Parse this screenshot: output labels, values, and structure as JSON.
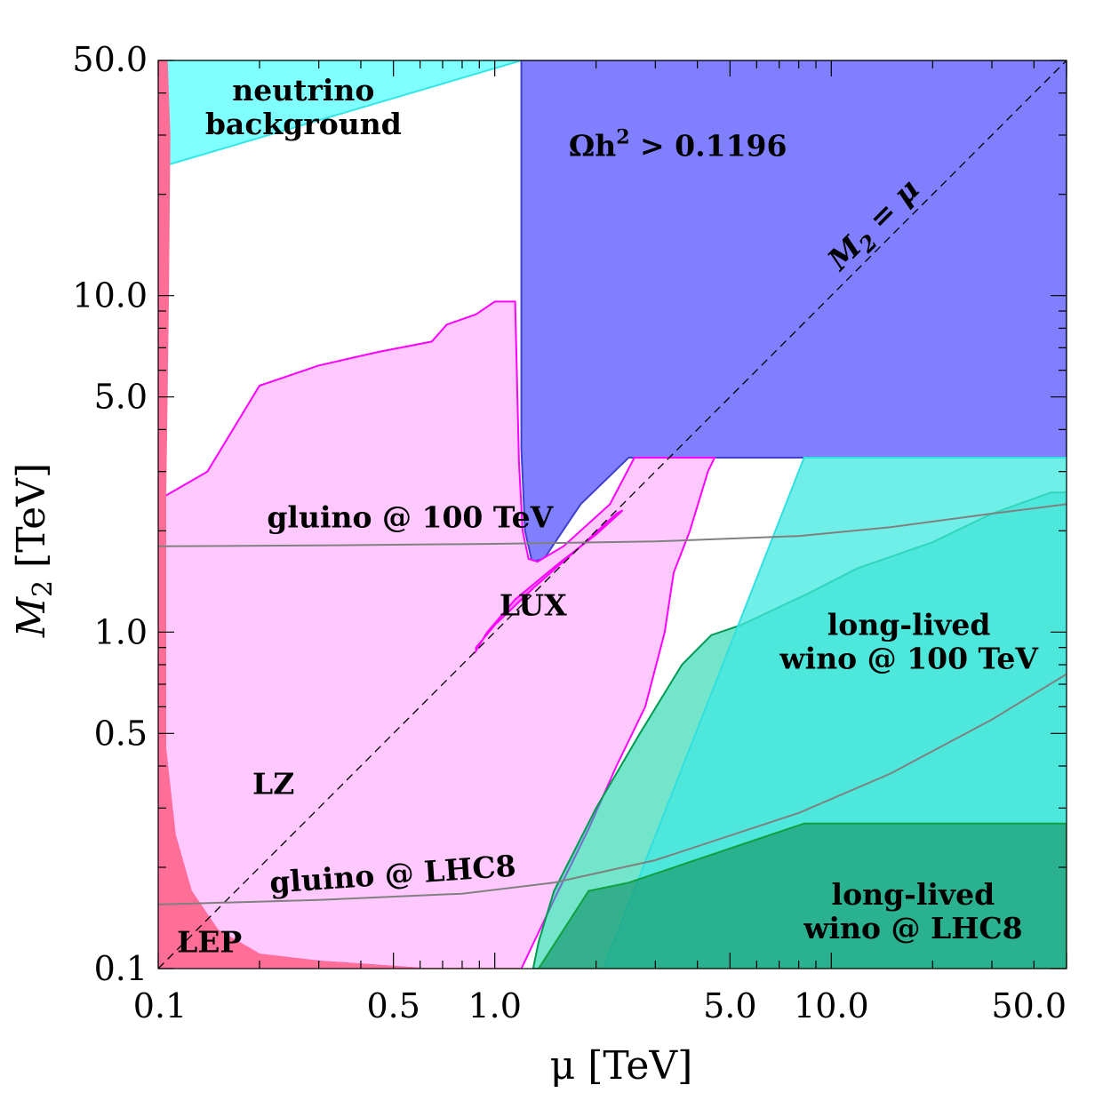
{
  "chart_data": {
    "type": "area",
    "title": "",
    "xlabel": "μ [TeV]",
    "ylabel": "M2 [TeV]",
    "xscale": "log",
    "yscale": "log",
    "xlim": [
      0.1,
      50.0
    ],
    "ylim": [
      0.1,
      50.0
    ],
    "x_ticks": [
      {
        "value": 0.1,
        "label": "0.1"
      },
      {
        "value": 0.5,
        "label": "0.5"
      },
      {
        "value": 1.0,
        "label": "1.0"
      },
      {
        "value": 5.0,
        "label": "5.0"
      },
      {
        "value": 10.0,
        "label": "10.0"
      },
      {
        "value": 50.0,
        "label": "50.0"
      }
    ],
    "y_ticks": [
      {
        "value": 0.1,
        "label": "0.1"
      },
      {
        "value": 0.5,
        "label": "0.5"
      },
      {
        "value": 1.0,
        "label": "1.0"
      },
      {
        "value": 5.0,
        "label": "5.0"
      },
      {
        "value": 10.0,
        "label": "10.0"
      },
      {
        "value": 50.0,
        "label": "50.0"
      }
    ],
    "regions": [
      {
        "id": "neutrino",
        "name": "neutrino background",
        "fill": "#80ffff",
        "stroke": "#33e6e6",
        "opacity": 1,
        "points": [
          [
            0.1,
            50.0
          ],
          [
            1.2,
            50.0
          ],
          [
            0.1,
            24.0
          ]
        ]
      },
      {
        "id": "relic",
        "name": "Ωh² > 0.1196",
        "fill": "#8080ff",
        "stroke": "#4040d0",
        "opacity": 1,
        "points": [
          [
            1.2,
            50.0
          ],
          [
            50.0,
            50.0
          ],
          [
            50.0,
            3.3
          ],
          [
            2.5,
            3.3
          ],
          [
            1.8,
            2.4
          ],
          [
            1.4,
            1.65
          ],
          [
            1.29,
            1.62
          ],
          [
            1.23,
            2.0
          ],
          [
            1.2,
            3.5
          ],
          [
            1.2,
            10.0
          ]
        ]
      },
      {
        "id": "lz",
        "name": "LZ",
        "fill": "#ffc8ff",
        "stroke": "#ff00ff",
        "opacity": 1,
        "points": [
          [
            0.102,
            2.5
          ],
          [
            0.14,
            3.0
          ],
          [
            0.2,
            5.4
          ],
          [
            0.3,
            6.2
          ],
          [
            0.45,
            6.8
          ],
          [
            0.65,
            7.3
          ],
          [
            0.72,
            8.2
          ],
          [
            0.88,
            8.8
          ],
          [
            1.0,
            9.6
          ],
          [
            1.15,
            9.6
          ],
          [
            1.15,
            9.6
          ],
          [
            1.18,
            3.2
          ],
          [
            1.21,
            2.0
          ],
          [
            1.26,
            1.65
          ],
          [
            1.34,
            1.62
          ],
          [
            1.6,
            1.8
          ],
          [
            2.2,
            2.4
          ],
          [
            2.6,
            3.3
          ],
          [
            4.5,
            3.3
          ],
          [
            4.3,
            3.0
          ],
          [
            3.8,
            2.0
          ],
          [
            3.4,
            1.5
          ],
          [
            3.2,
            1.0
          ],
          [
            2.8,
            0.6
          ],
          [
            2.3,
            0.4
          ],
          [
            1.9,
            0.26
          ],
          [
            1.5,
            0.16
          ],
          [
            1.2,
            0.1
          ],
          [
            0.6,
            0.1
          ],
          [
            0.3,
            0.105
          ],
          [
            0.2,
            0.11
          ],
          [
            0.15,
            0.13
          ],
          [
            0.125,
            0.17
          ],
          [
            0.112,
            0.25
          ],
          [
            0.105,
            0.45
          ],
          [
            0.102,
            1.0
          ]
        ]
      },
      {
        "id": "lux",
        "name": "LUX",
        "fill": "#ff80ff",
        "stroke": "#ff00ff",
        "opacity": 1,
        "points": [
          [
            0.88,
            0.88
          ],
          [
            0.95,
            1.0
          ],
          [
            1.15,
            1.25
          ],
          [
            1.55,
            1.6
          ],
          [
            2.0,
            1.95
          ],
          [
            2.4,
            2.3
          ],
          [
            2.3,
            2.25
          ],
          [
            1.8,
            1.8
          ],
          [
            1.3,
            1.35
          ],
          [
            1.0,
            1.05
          ],
          [
            0.88,
            0.9
          ]
        ]
      },
      {
        "id": "lep",
        "name": "LEP",
        "fill": "#ff6e96",
        "stroke": "#ff6e96",
        "opacity": 1,
        "points": [
          [
            0.1,
            50.0
          ],
          [
            0.106,
            50.0
          ],
          [
            0.108,
            30.0
          ],
          [
            0.107,
            10.0
          ],
          [
            0.106,
            5.0
          ],
          [
            0.105,
            2.5
          ],
          [
            0.105,
            0.45
          ],
          [
            0.112,
            0.25
          ],
          [
            0.125,
            0.17
          ],
          [
            0.15,
            0.13
          ],
          [
            0.2,
            0.11
          ],
          [
            0.3,
            0.105
          ],
          [
            0.6,
            0.1
          ],
          [
            1.2,
            0.1
          ],
          [
            0.1,
            0.1
          ]
        ]
      },
      {
        "id": "wino100",
        "name": "long-lived wino @ 100 TeV",
        "fill": "#00d0a0",
        "stroke": "#009a50",
        "opacity": 0.55,
        "points": [
          [
            1.3,
            0.1
          ],
          [
            50.0,
            0.1
          ],
          [
            50.0,
            2.6
          ],
          [
            45.0,
            2.6
          ],
          [
            30.0,
            2.25
          ],
          [
            20.0,
            1.85
          ],
          [
            12.0,
            1.55
          ],
          [
            8.5,
            1.3
          ],
          [
            5.4,
            1.05
          ],
          [
            4.4,
            0.98
          ],
          [
            3.6,
            0.8
          ],
          [
            2.7,
            0.5
          ],
          [
            2.0,
            0.3
          ],
          [
            1.5,
            0.17
          ],
          [
            1.35,
            0.12
          ]
        ]
      },
      {
        "id": "wino100cyan",
        "name": "",
        "fill": "#40e8e0",
        "stroke": "#30e0e0",
        "opacity": 0.75,
        "points": [
          [
            2.1,
            0.1
          ],
          [
            50.0,
            0.1
          ],
          [
            50.0,
            3.3
          ],
          [
            8.3,
            3.3
          ]
        ]
      },
      {
        "id": "winoLHC8",
        "name": "long-lived wino @ LHC8",
        "fill": "#1a9a70",
        "stroke": "#10a040",
        "opacity": 0.7,
        "points": [
          [
            1.35,
            0.1
          ],
          [
            50.0,
            0.1
          ],
          [
            50.0,
            0.27
          ],
          [
            8.3,
            0.27
          ],
          [
            2.5,
            0.18
          ],
          [
            1.9,
            0.17
          ]
        ]
      }
    ],
    "lines": [
      {
        "id": "diagonal",
        "name": "M2 = μ",
        "style": "dashed",
        "color": "#000000",
        "points": [
          [
            0.1,
            0.1
          ],
          [
            50.0,
            50.0
          ]
        ]
      },
      {
        "id": "gluino100",
        "name": "gluino @ 100 TeV",
        "style": "solid",
        "color": "#808080",
        "points": [
          [
            0.1,
            1.8
          ],
          [
            0.3,
            1.81
          ],
          [
            1.0,
            1.83
          ],
          [
            3.0,
            1.86
          ],
          [
            8.0,
            1.93
          ],
          [
            15.0,
            2.05
          ],
          [
            30.0,
            2.25
          ],
          [
            50.0,
            2.4
          ]
        ]
      },
      {
        "id": "gluinoLHC8",
        "name": "gluino @ LHC8",
        "style": "solid",
        "color": "#808080",
        "points": [
          [
            0.1,
            0.155
          ],
          [
            0.3,
            0.16
          ],
          [
            0.8,
            0.167
          ],
          [
            1.5,
            0.18
          ],
          [
            3.0,
            0.21
          ],
          [
            8.0,
            0.29
          ],
          [
            15.0,
            0.38
          ],
          [
            30.0,
            0.55
          ],
          [
            50.0,
            0.75
          ]
        ]
      }
    ],
    "annotations": [
      {
        "id": "neutrino",
        "lines": [
          "neutrino",
          "background"
        ],
        "x": 0.27,
        "y": 38.0,
        "anchor": "middle"
      },
      {
        "id": "relic",
        "lines": [
          "Ωh",
          "2",
          " > 0.1196"
        ],
        "x": 3.5,
        "y": 26.0,
        "anchor": "middle",
        "superscript": true
      },
      {
        "id": "diagonal",
        "lines": [
          "M",
          "2",
          " = μ"
        ],
        "x": 14.0,
        "y": 15.5,
        "anchor": "middle",
        "rotate": -45,
        "italic": true
      },
      {
        "id": "gluino100",
        "lines": [
          "gluino @ 100 TeV"
        ],
        "x": 0.56,
        "y": 2.05,
        "anchor": "middle"
      },
      {
        "id": "lux",
        "lines": [
          "LUX"
        ],
        "x": 1.3,
        "y": 1.12,
        "anchor": "middle"
      },
      {
        "id": "wino100",
        "lines": [
          "long-lived",
          "wino @ 100 TeV"
        ],
        "x": 17.0,
        "y": 0.98,
        "anchor": "middle"
      },
      {
        "id": "lz",
        "lines": [
          "LZ"
        ],
        "x": 0.22,
        "y": 0.33,
        "anchor": "middle"
      },
      {
        "id": "gluinoLHC8",
        "lines": [
          "gluino @ LHC8"
        ],
        "x": 0.5,
        "y": 0.178,
        "anchor": "middle",
        "rotate": -4
      },
      {
        "id": "winoLHC8",
        "lines": [
          "long-lived",
          "wino @ LHC8"
        ],
        "x": 17.5,
        "y": 0.155,
        "anchor": "middle"
      },
      {
        "id": "lep",
        "lines": [
          "LEP"
        ],
        "x": 0.142,
        "y": 0.112,
        "anchor": "middle"
      }
    ]
  }
}
